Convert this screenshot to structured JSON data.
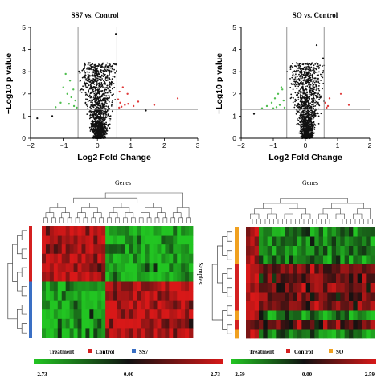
{
  "chart_data": [
    {
      "type": "scatter",
      "title": "SS7 vs. Control",
      "xlabel": "Log2 Fold Change",
      "ylabel": "−Log10 p value",
      "xlim": [
        -2,
        3
      ],
      "ylim": [
        0,
        5
      ],
      "xticks": [
        "−2",
        "−1",
        "0",
        "1",
        "2",
        "3"
      ],
      "yticks": [
        "0",
        "1",
        "2",
        "3",
        "4",
        "5"
      ],
      "fold_change_thresholds": [
        -0.58,
        0.58
      ],
      "p_value_threshold": 1.3,
      "colors": {
        "up": "#e03a3a",
        "down": "#4fbf4f",
        "ns": "#111111",
        "lines": "#777777"
      },
      "series": [
        {
          "values": [
            [
              -0.95,
              2.9
            ],
            [
              -0.82,
              2.6
            ],
            [
              -1.02,
              2.3
            ],
            [
              -0.72,
              2.2
            ],
            [
              -0.9,
              2.0
            ],
            [
              -0.78,
              1.85
            ],
            [
              -0.66,
              1.7
            ],
            [
              -1.1,
              1.6
            ],
            [
              -0.85,
              1.55
            ],
            [
              -0.7,
              1.45
            ],
            [
              -1.25,
              1.4
            ],
            [
              -0.62,
              1.38
            ]
          ]
        },
        {
          "values": [
            [
              0.62,
              1.75
            ],
            [
              0.68,
              1.6
            ],
            [
              0.82,
              1.5
            ],
            [
              0.72,
              1.42
            ],
            [
              0.92,
              1.55
            ],
            [
              1.08,
              1.45
            ],
            [
              1.22,
              1.65
            ],
            [
              0.65,
              1.38
            ],
            [
              0.76,
              2.3
            ],
            [
              0.66,
              2.1
            ],
            [
              1.7,
              1.5
            ],
            [
              0.9,
              2.0
            ]
          ]
        }
      ],
      "extreme_points": [
        [
          2.4,
          1.8
        ],
        [
          -1.8,
          0.9
        ],
        [
          -1.35,
          1.0
        ],
        [
          1.45,
          1.25
        ],
        [
          0.55,
          4.7
        ]
      ]
    },
    {
      "type": "scatter",
      "title": "SO vs. Control",
      "xlabel": "Log2 Fold Change",
      "ylabel": "−Log10 p value",
      "xlim": [
        -2,
        2
      ],
      "ylim": [
        0,
        5
      ],
      "xticks": [
        "−2",
        "−1",
        "0",
        "1",
        "2"
      ],
      "yticks": [
        "0",
        "1",
        "2",
        "3",
        "4",
        "5"
      ],
      "fold_change_thresholds": [
        -0.58,
        0.58
      ],
      "p_value_threshold": 1.3,
      "colors": {
        "up": "#e03a3a",
        "down": "#4fbf4f",
        "ns": "#111111",
        "lines": "#777777"
      },
      "series": [
        {
          "values": [
            [
              -0.72,
              2.2
            ],
            [
              -0.85,
              2.0
            ],
            [
              -0.95,
              1.8
            ],
            [
              -0.68,
              1.7
            ],
            [
              -1.05,
              1.6
            ],
            [
              -0.8,
              1.5
            ],
            [
              -1.2,
              1.45
            ],
            [
              -0.9,
              1.4
            ],
            [
              -0.65,
              1.38
            ],
            [
              -1.35,
              1.35
            ],
            [
              -0.75,
              2.3
            ],
            [
              -1.0,
              1.35
            ]
          ]
        },
        {
          "values": [
            [
              0.62,
              1.6
            ],
            [
              0.7,
              1.45
            ],
            [
              0.66,
              1.38
            ],
            [
              0.75,
              1.8
            ]
          ]
        }
      ],
      "extreme_points": [
        [
          0.35,
          4.2
        ],
        [
          0.55,
          3.6
        ],
        [
          -0.3,
          3.0
        ],
        [
          1.1,
          2.0
        ],
        [
          1.35,
          1.5
        ],
        [
          -1.6,
          1.1
        ]
      ]
    },
    {
      "type": "heatmap",
      "title": "Genes",
      "ylabel": "",
      "colorbar": {
        "min_label": "-2.73",
        "mid_label": "0.00",
        "max_label": "2.73",
        "low_color": "#22c522",
        "mid_color": "#111111",
        "high_color": "#d81818"
      },
      "legend": [
        {
          "label": "Treatment",
          "color": "#111111"
        },
        {
          "label": "Control",
          "color": "#d42020"
        },
        {
          "label": "SS7",
          "color": "#3a6fc4"
        }
      ],
      "sample_groups": [
        "Control",
        "Control",
        "Control",
        "Control",
        "Control",
        "Control",
        "SS7",
        "SS7",
        "SS7",
        "SS7",
        "SS7",
        "SS7"
      ],
      "group_colors": {
        "Control": "#d42020",
        "SS7": "#3a6fc4",
        "SO": "#f0a020"
      }
    },
    {
      "type": "heatmap",
      "title": "Genes",
      "ylabel": "Samples",
      "colorbar": {
        "min_label": "-2.59",
        "mid_label": "0.00",
        "max_label": "2.59",
        "low_color": "#22c522",
        "mid_color": "#111111",
        "high_color": "#d81818"
      },
      "legend": [
        {
          "label": "Treatment",
          "color": "#111111"
        },
        {
          "label": "Control",
          "color": "#d42020"
        },
        {
          "label": "SO",
          "color": "#f0a020"
        }
      ],
      "sample_groups": [
        "SO",
        "SO",
        "SO",
        "SO",
        "Control",
        "Control",
        "Control",
        "Control",
        "Control",
        "SO",
        "Control",
        "SO"
      ],
      "group_colors": {
        "Control": "#d42020",
        "SS7": "#3a6fc4",
        "SO": "#f0a020"
      }
    }
  ]
}
